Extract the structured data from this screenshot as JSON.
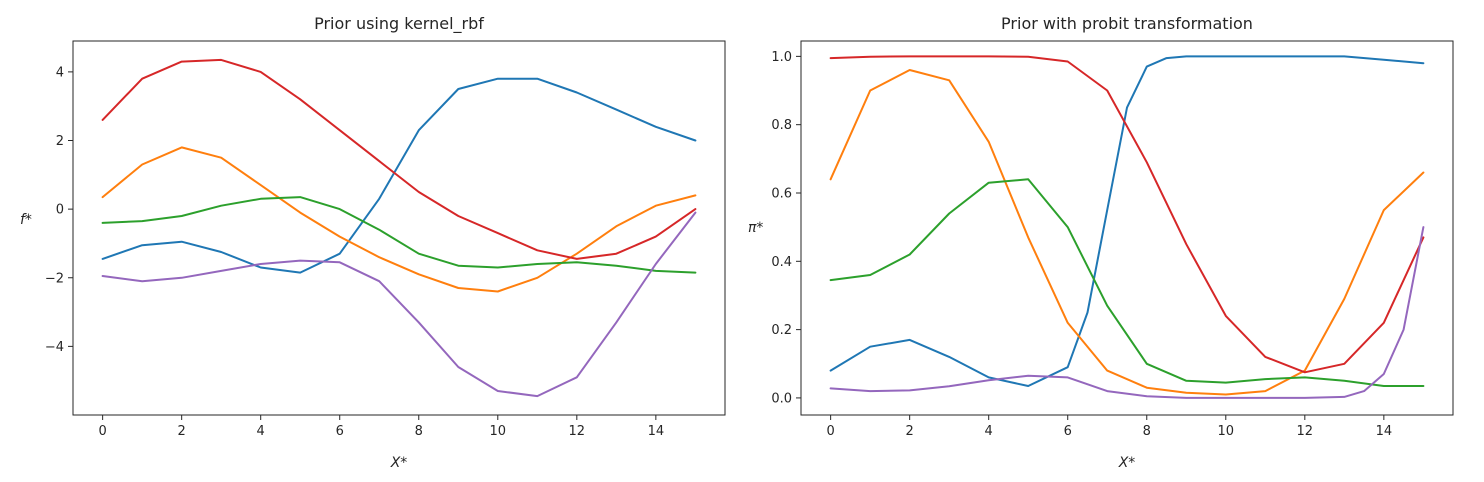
{
  "chart_data": [
    {
      "type": "line",
      "title": "Prior using kernel_rbf",
      "xlabel": "X*",
      "ylabel": "f*",
      "xlim": [
        -0.75,
        15.75
      ],
      "ylim": [
        -6.0,
        4.9
      ],
      "xticks": [
        0,
        2,
        4,
        6,
        8,
        10,
        12,
        14
      ],
      "yticks": [
        -4,
        -2,
        0,
        2,
        4
      ],
      "ytick_labels": [
        "−4",
        "−2",
        "0",
        "2",
        "4"
      ],
      "grid": false,
      "series": [
        {
          "color": "#1f77b4",
          "x": [
            0,
            1,
            2,
            3,
            4,
            5,
            6,
            7,
            8,
            9,
            10,
            11,
            12,
            13,
            14,
            15
          ],
          "y": [
            -1.45,
            -1.05,
            -0.95,
            -1.25,
            -1.7,
            -1.85,
            -1.3,
            0.3,
            2.3,
            3.5,
            3.8,
            3.8,
            3.4,
            2.9,
            2.4,
            2.0
          ]
        },
        {
          "color": "#ff7f0e",
          "x": [
            0,
            1,
            2,
            3,
            4,
            5,
            6,
            7,
            8,
            9,
            10,
            11,
            12,
            13,
            14,
            15
          ],
          "y": [
            0.35,
            1.3,
            1.8,
            1.5,
            0.7,
            -0.1,
            -0.8,
            -1.4,
            -1.9,
            -2.3,
            -2.4,
            -2.0,
            -1.3,
            -0.5,
            0.1,
            0.4
          ]
        },
        {
          "color": "#2ca02c",
          "x": [
            0,
            1,
            2,
            3,
            4,
            5,
            6,
            7,
            8,
            9,
            10,
            11,
            12,
            13,
            14,
            15
          ],
          "y": [
            -0.4,
            -0.35,
            -0.2,
            0.1,
            0.3,
            0.35,
            0.0,
            -0.6,
            -1.3,
            -1.65,
            -1.7,
            -1.6,
            -1.55,
            -1.65,
            -1.8,
            -1.85
          ]
        },
        {
          "color": "#d62728",
          "x": [
            0,
            1,
            2,
            3,
            4,
            5,
            6,
            7,
            8,
            9,
            10,
            11,
            12,
            13,
            14,
            15
          ],
          "y": [
            2.6,
            3.8,
            4.3,
            4.35,
            4.0,
            3.2,
            2.3,
            1.4,
            0.5,
            -0.2,
            -0.7,
            -1.2,
            -1.45,
            -1.3,
            -0.8,
            0.0
          ]
        },
        {
          "color": "#9467bd",
          "x": [
            0,
            1,
            2,
            3,
            4,
            5,
            6,
            7,
            8,
            9,
            10,
            11,
            12,
            13,
            14,
            15
          ],
          "y": [
            -1.95,
            -2.1,
            -2.0,
            -1.8,
            -1.6,
            -1.5,
            -1.55,
            -2.1,
            -3.3,
            -4.6,
            -5.3,
            -5.45,
            -4.9,
            -3.3,
            -1.6,
            -0.1
          ]
        }
      ]
    },
    {
      "type": "line",
      "title": "Prior with probit transformation",
      "xlabel": "X*",
      "ylabel": "π*",
      "xlim": [
        -0.75,
        15.75
      ],
      "ylim": [
        -0.05,
        1.045
      ],
      "xticks": [
        0,
        2,
        4,
        6,
        8,
        10,
        12,
        14
      ],
      "yticks": [
        0.0,
        0.2,
        0.4,
        0.6,
        0.8,
        1.0
      ],
      "ytick_labels": [
        "0.0",
        "0.2",
        "0.4",
        "0.6",
        "0.8",
        "1.0"
      ],
      "grid": false,
      "series": [
        {
          "color": "#1f77b4",
          "x": [
            0,
            1,
            2,
            3,
            4,
            5,
            6,
            6.5,
            7,
            7.5,
            8,
            8.5,
            9,
            10,
            11,
            12,
            13,
            14,
            15
          ],
          "y": [
            0.08,
            0.15,
            0.17,
            0.12,
            0.06,
            0.035,
            0.09,
            0.25,
            0.55,
            0.85,
            0.97,
            0.995,
            1.0,
            1.0,
            1.0,
            1.0,
            1.0,
            0.99,
            0.98
          ]
        },
        {
          "color": "#ff7f0e",
          "x": [
            0,
            1,
            2,
            3,
            4,
            5,
            6,
            7,
            8,
            9,
            10,
            11,
            12,
            13,
            14,
            15
          ],
          "y": [
            0.64,
            0.9,
            0.96,
            0.93,
            0.75,
            0.47,
            0.22,
            0.08,
            0.03,
            0.015,
            0.01,
            0.02,
            0.08,
            0.29,
            0.55,
            0.66
          ]
        },
        {
          "color": "#2ca02c",
          "x": [
            0,
            1,
            2,
            3,
            4,
            5,
            6,
            7,
            8,
            9,
            10,
            11,
            12,
            13,
            14,
            15
          ],
          "y": [
            0.345,
            0.36,
            0.42,
            0.54,
            0.63,
            0.64,
            0.5,
            0.27,
            0.1,
            0.05,
            0.045,
            0.055,
            0.06,
            0.05,
            0.035,
            0.035
          ]
        },
        {
          "color": "#d62728",
          "x": [
            0,
            1,
            2,
            3,
            4,
            5,
            6,
            7,
            8,
            9,
            10,
            11,
            12,
            13,
            14,
            15
          ],
          "y": [
            0.995,
            0.999,
            1.0,
            1.0,
            1.0,
            0.999,
            0.985,
            0.9,
            0.69,
            0.45,
            0.24,
            0.12,
            0.075,
            0.1,
            0.22,
            0.47
          ]
        },
        {
          "color": "#9467bd",
          "x": [
            0,
            1,
            2,
            3,
            4,
            5,
            6,
            7,
            8,
            9,
            10,
            11,
            12,
            13,
            13.5,
            14,
            14.5,
            15
          ],
          "y": [
            0.028,
            0.02,
            0.022,
            0.034,
            0.052,
            0.065,
            0.06,
            0.02,
            0.005,
            0.0,
            0.0,
            0.0,
            0.0,
            0.003,
            0.02,
            0.07,
            0.2,
            0.5
          ]
        }
      ]
    }
  ]
}
